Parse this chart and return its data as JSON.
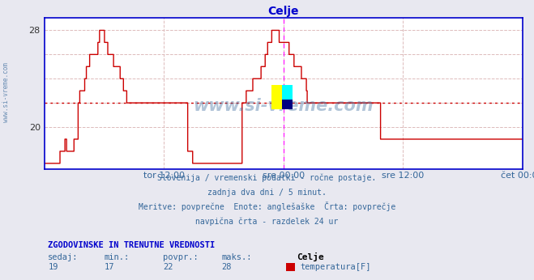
{
  "title": "Celje",
  "title_color": "#0000cc",
  "bg_color": "#e8e8f0",
  "plot_bg_color": "#ffffff",
  "plot_bg_outer": "#dde0ee",
  "line_color": "#cc0000",
  "line_width": 1.0,
  "avg_line_value": 22,
  "avg_line_color": "#cc0000",
  "grid_color": "#ddbbbb",
  "axis_line_color": "#0000cc",
  "magenta_line_color": "#ff00ff",
  "text_color": "#336699",
  "watermark_color": "#336699",
  "ylim_min": 16.5,
  "ylim_max": 29.0,
  "yticks": [
    20,
    28
  ],
  "xtick_labels": [
    "tor 12:00",
    "sre 00:00",
    "sre 12:00",
    "čet 00:00"
  ],
  "xtick_positions": [
    0.25,
    0.5,
    0.75,
    1.0
  ],
  "subtitle_lines": [
    "Slovenija / vremenski podatki - ročne postaje.",
    "zadnja dva dni / 5 minut.",
    "Meritve: povprečne  Enote: anglešaške  Črta: povprečje",
    "navpična črta - razdelek 24 ur"
  ],
  "stats_header": "ZGODOVINSKE IN TRENUTNE VREDNOSTI",
  "stats_labels": [
    "sedaj:",
    "min.:",
    "povpr.:",
    "maks.:"
  ],
  "stats_values": [
    "19",
    "17",
    "22",
    "28"
  ],
  "legend_label": "Celje",
  "legend_series": "temperatura[F]",
  "legend_color": "#cc0000",
  "temperature_data": [
    17,
    17,
    17,
    17,
    17,
    17,
    17,
    17,
    17,
    17,
    17,
    17,
    17,
    17,
    17,
    17,
    17,
    17,
    17,
    18,
    18,
    18,
    18,
    18,
    18,
    19,
    19,
    18,
    18,
    18,
    18,
    18,
    18,
    18,
    18,
    18,
    19,
    19,
    19,
    19,
    19,
    22,
    22,
    23,
    23,
    23,
    23,
    23,
    23,
    24,
    24,
    25,
    25,
    25,
    25,
    26,
    26,
    26,
    26,
    26,
    26,
    26,
    26,
    26,
    26,
    27,
    27,
    28,
    28,
    28,
    28,
    28,
    28,
    27,
    27,
    27,
    27,
    26,
    26,
    26,
    26,
    26,
    26,
    26,
    25,
    25,
    25,
    25,
    25,
    25,
    25,
    25,
    24,
    24,
    24,
    24,
    23,
    23,
    23,
    23,
    22,
    22,
    22,
    22,
    22,
    22,
    22,
    22,
    22,
    22,
    22,
    22,
    22,
    22,
    22,
    22,
    22,
    22,
    22,
    22,
    22,
    22,
    22,
    22,
    22,
    22,
    22,
    22,
    22,
    22,
    22,
    22,
    22,
    22,
    22,
    22,
    22,
    22,
    22,
    22,
    22,
    22,
    22,
    22,
    22,
    22,
    22,
    22,
    22,
    22,
    22,
    22,
    22,
    22,
    22,
    22,
    22,
    22,
    22,
    22,
    22,
    22,
    22,
    22,
    22,
    22,
    22,
    22,
    22,
    22,
    22,
    22,
    22,
    22,
    18,
    18,
    18,
    18,
    18,
    18,
    17,
    17,
    17,
    17,
    17,
    17,
    17,
    17,
    17,
    17,
    17,
    17,
    17,
    17,
    17,
    17,
    17,
    17,
    17,
    17,
    17,
    17,
    17,
    17,
    17,
    17,
    17,
    17,
    17,
    17,
    17,
    17,
    17,
    17,
    17,
    17,
    17,
    17,
    17,
    17,
    17,
    17,
    17,
    17,
    17,
    17,
    17,
    17,
    17,
    17,
    17,
    17,
    17,
    17,
    17,
    17,
    17,
    17,
    17,
    17,
    22,
    22,
    22,
    22,
    22,
    23,
    23,
    23,
    23,
    23,
    23,
    23,
    23,
    24,
    24,
    24,
    24,
    24,
    24,
    24,
    24,
    24,
    24,
    25,
    25,
    25,
    25,
    25,
    26,
    26,
    26,
    27,
    27,
    27,
    27,
    27,
    28,
    28,
    28,
    28,
    28,
    28,
    28,
    28,
    28,
    27,
    27,
    27,
    27,
    27,
    27,
    27,
    27,
    27,
    27,
    27,
    27,
    26,
    26,
    26,
    26,
    26,
    26,
    25,
    25,
    25,
    25,
    25,
    25,
    25,
    25,
    25,
    24,
    24,
    24,
    24,
    24,
    24,
    23,
    22,
    22,
    22,
    22,
    22,
    22,
    22,
    22,
    22,
    22,
    22,
    22,
    22,
    22,
    22,
    22,
    22,
    22,
    22,
    22,
    22,
    22,
    22,
    22,
    22,
    22,
    22,
    22,
    22,
    22,
    22,
    22,
    22,
    22,
    22,
    22,
    22,
    22,
    22,
    22,
    22,
    22,
    22,
    22,
    22,
    22,
    22,
    22,
    22,
    22,
    22,
    22,
    22,
    22,
    22,
    22,
    22,
    22,
    22,
    22,
    22,
    22,
    22,
    22,
    22,
    22,
    22,
    22,
    22,
    22,
    22,
    22,
    22,
    22,
    22,
    22,
    22,
    22,
    22,
    22,
    22,
    22,
    22,
    22,
    22,
    22,
    22,
    22,
    22,
    19,
    19,
    19,
    19,
    19,
    19,
    19,
    19,
    19,
    19,
    19,
    19,
    19,
    19,
    19,
    19,
    19,
    19,
    19,
    19,
    19,
    19,
    19,
    19,
    19,
    19,
    19,
    19,
    19,
    19,
    19,
    19,
    19,
    19,
    19,
    19,
    19,
    19,
    19,
    19,
    19,
    19,
    19,
    19,
    19,
    19,
    19,
    19,
    19,
    19,
    19,
    19,
    19,
    19,
    19,
    19,
    19,
    19,
    19,
    19,
    19,
    19,
    19,
    19,
    19,
    19,
    19,
    19,
    19,
    19,
    19,
    19,
    19,
    19,
    19,
    19,
    19,
    19,
    19,
    19,
    19,
    19,
    19,
    19,
    19,
    19,
    19,
    19,
    19,
    19,
    19,
    19,
    19,
    19,
    19,
    19,
    19,
    19,
    19,
    19,
    19,
    19,
    19,
    19,
    19,
    19,
    19,
    19,
    19,
    19,
    19,
    19,
    19,
    19,
    19,
    19,
    19,
    19,
    19,
    19,
    19,
    19,
    19,
    19,
    19,
    19,
    19,
    19,
    19,
    19,
    19,
    19,
    19,
    19,
    19,
    19,
    19,
    19,
    19,
    19,
    19,
    19,
    19,
    19,
    19,
    19,
    19,
    19,
    19,
    19,
    19,
    19,
    19,
    19,
    19,
    19,
    19,
    19,
    19,
    19,
    19,
    19,
    19,
    19,
    19,
    19,
    19,
    19,
    19,
    19,
    19,
    19,
    19
  ]
}
